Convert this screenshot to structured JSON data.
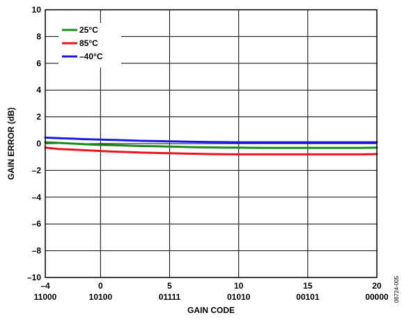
{
  "chart_data": {
    "type": "line",
    "title": "",
    "xlabel": "GAIN CODE",
    "ylabel": "GAIN ERROR (dB)",
    "xlim": [
      -4,
      20
    ],
    "ylim": [
      -10,
      10
    ],
    "x_ticks": [
      {
        "value": -4,
        "label": "–4",
        "code": "11000"
      },
      {
        "value": 0,
        "label": "0",
        "code": "10100"
      },
      {
        "value": 5,
        "label": "5",
        "code": "01111"
      },
      {
        "value": 10,
        "label": "10",
        "code": "01010"
      },
      {
        "value": 15,
        "label": "15",
        "code": "00101"
      },
      {
        "value": 20,
        "label": "20",
        "code": "00000"
      }
    ],
    "y_ticks": [
      {
        "value": 10,
        "label": "10"
      },
      {
        "value": 8,
        "label": "8"
      },
      {
        "value": 6,
        "label": "6"
      },
      {
        "value": 4,
        "label": "4"
      },
      {
        "value": 2,
        "label": "2"
      },
      {
        "value": 0,
        "label": "0"
      },
      {
        "value": -2,
        "label": "–2"
      },
      {
        "value": -4,
        "label": "–4"
      },
      {
        "value": -6,
        "label": "–6"
      },
      {
        "value": -8,
        "label": "–8"
      },
      {
        "value": -10,
        "label": "–10"
      }
    ],
    "grid": true,
    "legend_position": "top-left",
    "series": [
      {
        "name": "25°C",
        "color": "#1a8a1a",
        "x": [
          -4,
          -3,
          -2,
          -1,
          0,
          1,
          2,
          3,
          4,
          5,
          6,
          7,
          8,
          9,
          10,
          11,
          12,
          13,
          14,
          15,
          16,
          17,
          18,
          19,
          20
        ],
        "y": [
          0.1,
          0.05,
          0.0,
          -0.05,
          -0.1,
          -0.12,
          -0.15,
          -0.18,
          -0.2,
          -0.22,
          -0.25,
          -0.27,
          -0.28,
          -0.3,
          -0.3,
          -0.31,
          -0.32,
          -0.32,
          -0.32,
          -0.32,
          -0.32,
          -0.32,
          -0.32,
          -0.32,
          -0.3
        ]
      },
      {
        "name": "85°C",
        "color": "#e8141b",
        "x": [
          -4,
          -3,
          -2,
          -1,
          0,
          1,
          2,
          3,
          4,
          5,
          6,
          7,
          8,
          9,
          10,
          11,
          12,
          13,
          14,
          15,
          16,
          17,
          18,
          19,
          20
        ],
        "y": [
          -0.3,
          -0.4,
          -0.45,
          -0.5,
          -0.55,
          -0.6,
          -0.63,
          -0.67,
          -0.7,
          -0.72,
          -0.74,
          -0.76,
          -0.78,
          -0.79,
          -0.8,
          -0.8,
          -0.8,
          -0.8,
          -0.8,
          -0.8,
          -0.8,
          -0.8,
          -0.8,
          -0.8,
          -0.78
        ]
      },
      {
        "name": "–40°C",
        "color": "#1a1ae6",
        "x": [
          -4,
          -3,
          -2,
          -1,
          0,
          1,
          2,
          3,
          4,
          5,
          6,
          7,
          8,
          9,
          10,
          11,
          12,
          13,
          14,
          15,
          16,
          17,
          18,
          19,
          20
        ],
        "y": [
          0.45,
          0.4,
          0.37,
          0.33,
          0.3,
          0.27,
          0.24,
          0.21,
          0.19,
          0.17,
          0.15,
          0.13,
          0.12,
          0.11,
          0.1,
          0.1,
          0.1,
          0.1,
          0.1,
          0.1,
          0.1,
          0.1,
          0.1,
          0.1,
          0.1
        ]
      }
    ]
  },
  "figure_id": "06724-005"
}
